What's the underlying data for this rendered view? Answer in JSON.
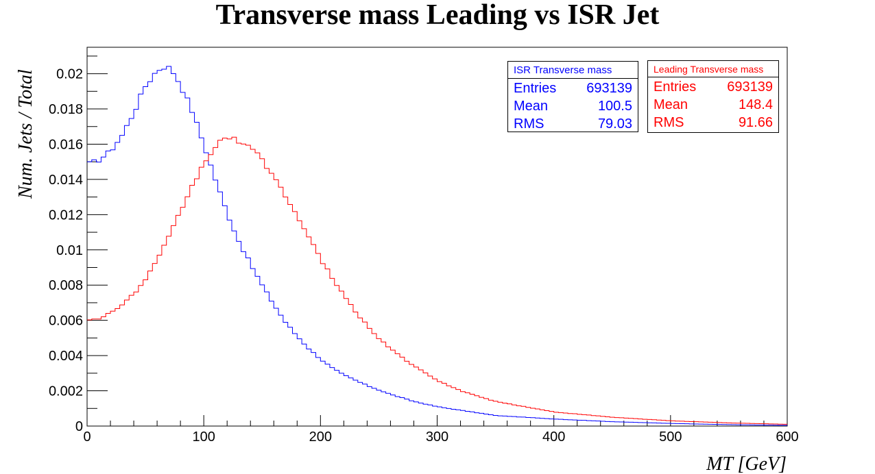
{
  "chart_data": {
    "type": "histogram",
    "title": "Transverse mass Leading vs ISR Jet",
    "xlabel": "MT [GeV]",
    "ylabel": "Num. Jets / Total",
    "xlim": [
      0,
      600
    ],
    "ylim": [
      0,
      0.0215
    ],
    "bin_width": 4,
    "x_ticks": [
      "0",
      "100",
      "200",
      "300",
      "400",
      "500",
      "600"
    ],
    "y_ticks": [
      "0",
      "0.002",
      "0.004",
      "0.006",
      "0.008",
      "0.01",
      "0.012",
      "0.014",
      "0.016",
      "0.018",
      "0.02"
    ],
    "grid": false,
    "series": [
      {
        "name": "ISR Transverse mass",
        "color": "#0000ff",
        "stats": [
          {
            "label": "Entries",
            "value": "693139"
          },
          {
            "label": "Mean",
            "value": "100.5"
          },
          {
            "label": "RMS",
            "value": "79.03"
          }
        ],
        "curve": [
          [
            2,
            0.0149
          ],
          [
            10,
            0.0151
          ],
          [
            20,
            0.0156
          ],
          [
            30,
            0.0165
          ],
          [
            40,
            0.0178
          ],
          [
            50,
            0.0193
          ],
          [
            60,
            0.0202
          ],
          [
            66,
            0.0204
          ],
          [
            72,
            0.0203
          ],
          [
            80,
            0.0194
          ],
          [
            90,
            0.0179
          ],
          [
            100,
            0.016
          ],
          [
            110,
            0.014
          ],
          [
            120,
            0.0121
          ],
          [
            130,
            0.0105
          ],
          [
            140,
            0.0092
          ],
          [
            150,
            0.008
          ],
          [
            160,
            0.0069
          ],
          [
            170,
            0.0059
          ],
          [
            180,
            0.0051
          ],
          [
            190,
            0.0044
          ],
          [
            200,
            0.0038
          ],
          [
            210,
            0.0033
          ],
          [
            220,
            0.0029
          ],
          [
            240,
            0.0023
          ],
          [
            260,
            0.0018
          ],
          [
            280,
            0.0014
          ],
          [
            300,
            0.0011
          ],
          [
            320,
            0.0009
          ],
          [
            350,
            0.0006
          ],
          [
            400,
            0.0004
          ],
          [
            450,
            0.00025
          ],
          [
            500,
            0.00015
          ],
          [
            550,
            8e-05
          ],
          [
            600,
            4e-05
          ]
        ]
      },
      {
        "name": "Leading Transverse mass",
        "color": "#ff0000",
        "stats": [
          {
            "label": "Entries",
            "value": "693139"
          },
          {
            "label": "Mean",
            "value": "148.4"
          },
          {
            "label": "RMS",
            "value": "91.66"
          }
        ],
        "curve": [
          [
            2,
            0.006
          ],
          [
            10,
            0.0061
          ],
          [
            20,
            0.0064
          ],
          [
            30,
            0.0069
          ],
          [
            40,
            0.0075
          ],
          [
            50,
            0.0083
          ],
          [
            60,
            0.0094
          ],
          [
            70,
            0.0107
          ],
          [
            80,
            0.0122
          ],
          [
            90,
            0.0136
          ],
          [
            100,
            0.0149
          ],
          [
            110,
            0.0159
          ],
          [
            120,
            0.0164
          ],
          [
            130,
            0.0162
          ],
          [
            140,
            0.0158
          ],
          [
            150,
            0.0151
          ],
          [
            160,
            0.0142
          ],
          [
            170,
            0.0131
          ],
          [
            180,
            0.0119
          ],
          [
            190,
            0.0107
          ],
          [
            200,
            0.0095
          ],
          [
            210,
            0.0084
          ],
          [
            220,
            0.0074
          ],
          [
            230,
            0.0065
          ],
          [
            240,
            0.0057
          ],
          [
            250,
            0.005
          ],
          [
            260,
            0.0044
          ],
          [
            280,
            0.0034
          ],
          [
            300,
            0.0026
          ],
          [
            320,
            0.002
          ],
          [
            350,
            0.0014
          ],
          [
            400,
            0.0008
          ],
          [
            450,
            0.0005
          ],
          [
            500,
            0.0003
          ],
          [
            550,
            0.00018
          ],
          [
            600,
            0.0001
          ]
        ]
      }
    ]
  }
}
